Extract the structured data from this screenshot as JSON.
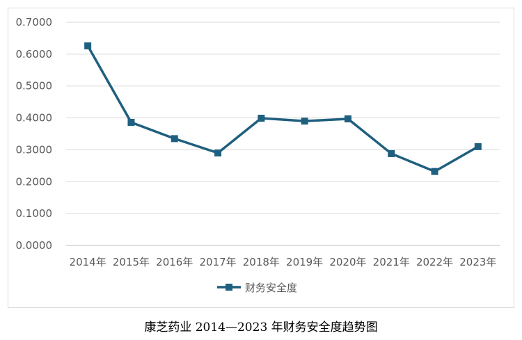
{
  "chart_data": {
    "type": "line",
    "title": "",
    "xlabel": "",
    "ylabel": "",
    "categories": [
      "2014年",
      "2015年",
      "2016年",
      "2017年",
      "2018年",
      "2019年",
      "2020年",
      "2021年",
      "2022年",
      "2023年"
    ],
    "series": [
      {
        "name": "财务安全度",
        "values": [
          0.626,
          0.386,
          0.335,
          0.29,
          0.399,
          0.39,
          0.397,
          0.288,
          0.232,
          0.31
        ]
      }
    ],
    "ylim": [
      0,
      0.7
    ],
    "yticks": [
      "0.0000",
      "0.1000",
      "0.2000",
      "0.3000",
      "0.4000",
      "0.5000",
      "0.6000",
      "0.7000"
    ],
    "grid": true,
    "legend": "bottom",
    "line_color": "#1f5f7f"
  },
  "caption": "康芝药业 2014—2023 年财务安全度趋势图"
}
